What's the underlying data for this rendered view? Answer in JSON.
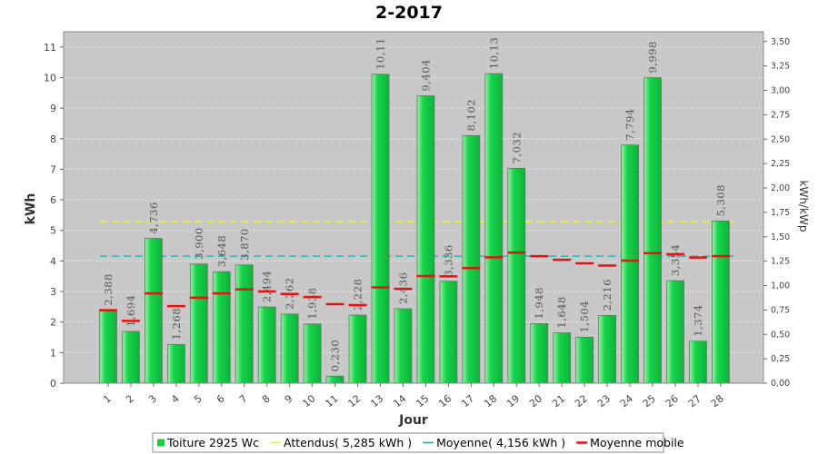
{
  "chart_data": {
    "type": "bar",
    "title": "2-2017",
    "xlabel": "Jour",
    "ylabel": "kWh",
    "y2label": "kWh/kWp",
    "ylim": [
      0,
      11.5
    ],
    "y2lim": [
      0,
      3.6
    ],
    "yticks": [
      0,
      1,
      2,
      3,
      4,
      5,
      6,
      7,
      8,
      9,
      10,
      11
    ],
    "y2ticks": [
      "0,00",
      "0,25",
      "0,50",
      "0,75",
      "1,00",
      "1,25",
      "1,50",
      "1,75",
      "2,00",
      "2,25",
      "2,50",
      "2,75",
      "3,00",
      "3,25",
      "3,50"
    ],
    "grid": true,
    "legend_position": "bottom",
    "categories": [
      "1",
      "2",
      "3",
      "4",
      "5",
      "6",
      "7",
      "8",
      "9",
      "10",
      "11",
      "12",
      "13",
      "14",
      "15",
      "16",
      "17",
      "18",
      "19",
      "20",
      "21",
      "22",
      "23",
      "24",
      "25",
      "26",
      "27",
      "28"
    ],
    "series": [
      {
        "name": "Toiture 2925 Wc",
        "kind": "bar",
        "color": "#1ec94a",
        "values": [
          2.388,
          1.694,
          4.736,
          1.268,
          3.9,
          3.648,
          3.87,
          2.494,
          2.262,
          1.938,
          0.23,
          2.228,
          10.11,
          2.436,
          9.404,
          3.336,
          8.102,
          10.13,
          7.032,
          1.948,
          1.648,
          1.504,
          2.216,
          7.794,
          9.998,
          3.354,
          1.374,
          5.308
        ],
        "labels": [
          "2,388",
          "1,694",
          "4,736",
          "1,268",
          "3,900",
          "3,648",
          "3,870",
          "2,494",
          "2,262",
          "1,938",
          "0,230",
          "2,228",
          "10,11",
          "2,436",
          "9,404",
          "3,336",
          "8,102",
          "10,13",
          "7,032",
          "1,948",
          "1,648",
          "1,504",
          "2,216",
          "7,794",
          "9,998",
          "3,354",
          "1,374",
          "5,308"
        ]
      },
      {
        "name": "Attendus( 5,285 kWh )",
        "kind": "hline",
        "color": "#f0f04a",
        "value": 5.285
      },
      {
        "name": "Moyenne( 4,156 kWh )",
        "kind": "hline",
        "color": "#29b6b6",
        "value": 4.156
      },
      {
        "name": "Moyenne mobile",
        "kind": "markers",
        "color": "#e81010",
        "values": [
          2.388,
          2.041,
          2.939,
          2.522,
          2.797,
          2.939,
          3.072,
          3.0,
          2.918,
          2.82,
          2.585,
          2.555,
          3.136,
          3.086,
          3.507,
          3.496,
          3.767,
          4.12,
          4.273,
          4.157,
          4.038,
          3.923,
          3.849,
          4.013,
          4.253,
          4.218,
          4.113,
          4.156
        ]
      }
    ]
  }
}
